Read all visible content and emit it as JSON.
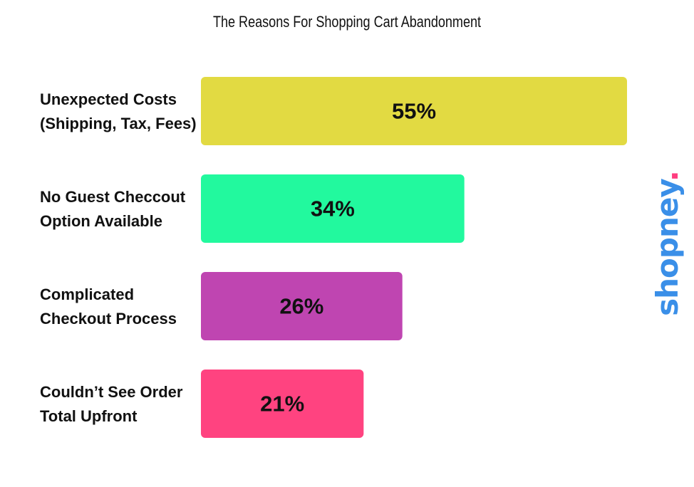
{
  "chart_data": {
    "type": "bar",
    "orientation": "horizontal",
    "title": "The Reasons For Shopping Cart Abandonment",
    "categories": [
      [
        "Unexpected Costs",
        "(Shipping, Tax, Fees)"
      ],
      [
        "No Guest Checcout",
        "Option Available"
      ],
      [
        "Complicated",
        "Checkout Process"
      ],
      [
        "Couldn’t See Order",
        "Total Upfront"
      ]
    ],
    "values": [
      55,
      34,
      26,
      21
    ],
    "data_labels": [
      "55%",
      "34%",
      "26%",
      "21%"
    ],
    "colors": [
      "#e2da42",
      "#22f99e",
      "#bf45b1",
      "#ff4380"
    ],
    "grid": false,
    "legend": "none"
  },
  "logo": {
    "text": "shopney",
    "dot": ".",
    "color": "#3a8fe8",
    "dot_color": "#ff3d7f"
  }
}
